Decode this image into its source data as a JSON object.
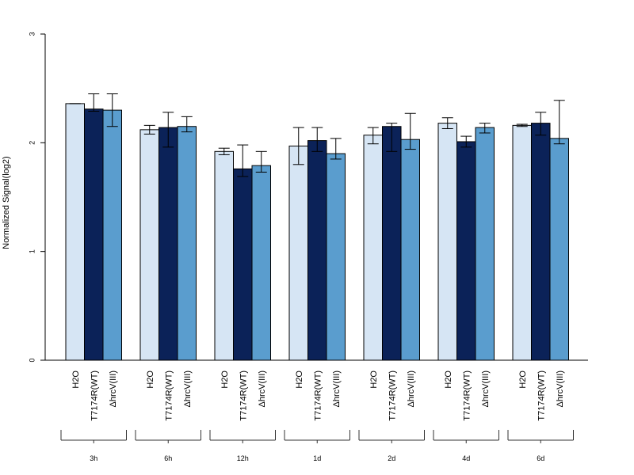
{
  "chart_data": {
    "type": "bar",
    "title": "",
    "ylabel": "Normalized Signal(log2)",
    "xlabel": "",
    "ylim": [
      0,
      3
    ],
    "yticks": [
      0,
      1,
      2,
      3
    ],
    "grid": false,
    "bar_labels": [
      "H2O",
      "T7174R(WT)",
      "ΔhrcV(III)"
    ],
    "series_colors": [
      "#d6e5f4",
      "#0b2258",
      "#5a9dce"
    ],
    "groups": [
      {
        "label": "3h",
        "values": [
          2.36,
          2.31,
          2.3
        ],
        "err_low": [
          2.36,
          2.29,
          2.15
        ],
        "err_high": [
          2.36,
          2.45,
          2.45
        ]
      },
      {
        "label": "6h",
        "values": [
          2.12,
          2.14,
          2.15
        ],
        "err_low": [
          2.08,
          1.96,
          2.1
        ],
        "err_high": [
          2.16,
          2.28,
          2.24
        ]
      },
      {
        "label": "12h",
        "values": [
          1.92,
          1.76,
          1.79
        ],
        "err_low": [
          1.89,
          1.69,
          1.73
        ],
        "err_high": [
          1.95,
          1.98,
          1.92
        ]
      },
      {
        "label": "1d",
        "values": [
          1.97,
          2.02,
          1.9
        ],
        "err_low": [
          1.8,
          1.92,
          1.85
        ],
        "err_high": [
          2.14,
          2.14,
          2.04
        ]
      },
      {
        "label": "2d",
        "values": [
          2.07,
          2.15,
          2.03
        ],
        "err_low": [
          1.99,
          1.92,
          1.94
        ],
        "err_high": [
          2.14,
          2.18,
          2.27
        ]
      },
      {
        "label": "4d",
        "values": [
          2.18,
          2.01,
          2.14
        ],
        "err_low": [
          2.13,
          1.96,
          2.09
        ],
        "err_high": [
          2.23,
          2.06,
          2.18
        ]
      },
      {
        "label": "6d",
        "values": [
          2.16,
          2.18,
          2.04
        ],
        "err_low": [
          2.15,
          2.07,
          1.99
        ],
        "err_high": [
          2.17,
          2.28,
          2.39
        ]
      }
    ]
  }
}
